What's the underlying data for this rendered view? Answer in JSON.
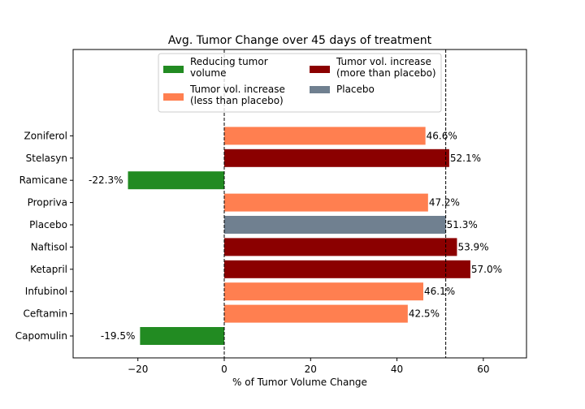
{
  "chart_data": {
    "type": "bar",
    "orientation": "horizontal",
    "title": "Avg. Tumor Change over 45 days of treatment",
    "xlabel": "% of Tumor Volume Change",
    "ylabel": "",
    "xlim": [
      -35,
      70
    ],
    "xticks": [
      -20,
      0,
      20,
      40,
      60
    ],
    "categories": [
      "Capomulin",
      "Ceftamin",
      "Infubinol",
      "Ketapril",
      "Naftisol",
      "Placebo",
      "Propriva",
      "Ramicane",
      "Stelasyn",
      "Zoniferol"
    ],
    "values": [
      -19.5,
      42.5,
      46.1,
      57.0,
      53.9,
      51.3,
      47.2,
      -22.3,
      52.1,
      46.6
    ],
    "value_labels": [
      "-19.5%",
      "42.5%",
      "46.1%",
      "57.0%",
      "53.9%",
      "51.3%",
      "47.2%",
      "-22.3%",
      "52.1%",
      "46.6%"
    ],
    "bar_groups": [
      "reducing",
      "less",
      "less",
      "more",
      "more",
      "placebo",
      "less",
      "reducing",
      "more",
      "less"
    ],
    "reference_lines": [
      0,
      51.3
    ],
    "grid": false,
    "legend_placement": "top-center",
    "legend": [
      {
        "key": "reducing",
        "label_lines": [
          "Reducing tumor",
          "volume"
        ],
        "color": "#228b22"
      },
      {
        "key": "less",
        "label_lines": [
          "Tumor vol. increase",
          "(less than placebo)"
        ],
        "color": "#ff7f50"
      },
      {
        "key": "more",
        "label_lines": [
          "Tumor vol. increase",
          "(more than placebo)"
        ],
        "color": "#8b0000"
      },
      {
        "key": "placebo",
        "label_lines": [
          "Placebo"
        ],
        "color": "#708090"
      }
    ]
  }
}
